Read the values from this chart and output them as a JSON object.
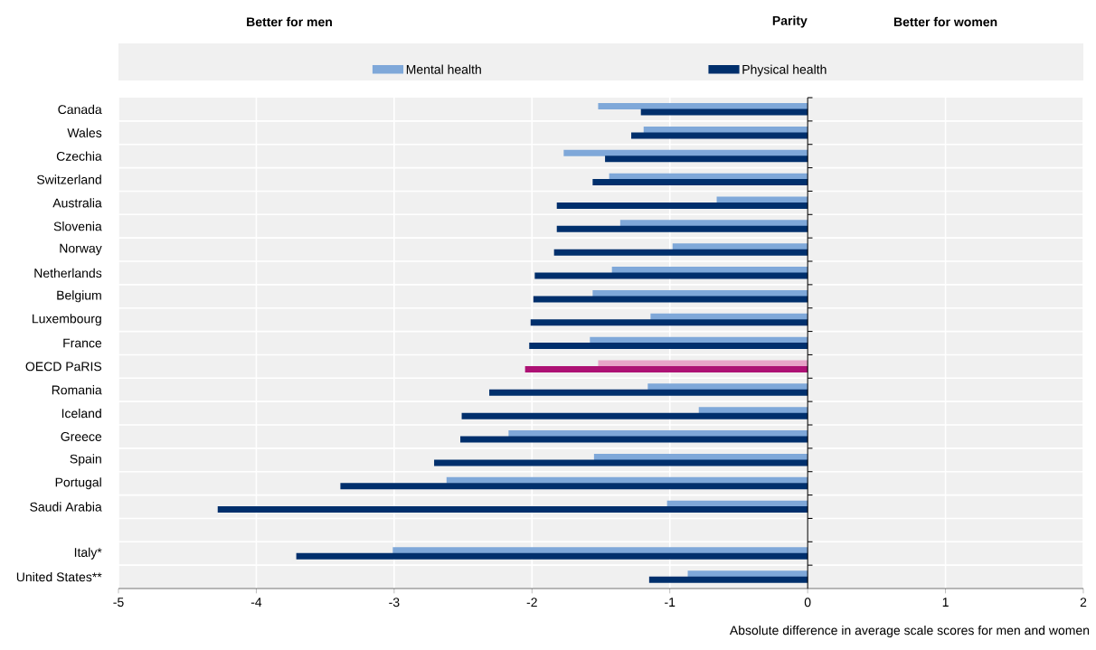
{
  "chart_data": {
    "type": "bar",
    "orientation": "horizontal",
    "xlabel": "Absolute difference in average scale scores for men and women",
    "annotations": [
      "Better for men",
      "Parity",
      "Better for women"
    ],
    "categories": [
      "Canada",
      "Wales",
      "Czechia",
      "Switzerland",
      "Australia",
      "Slovenia",
      "Norway",
      "Netherlands",
      "Belgium",
      "Luxembourg",
      "France",
      "OECD PaRIS",
      "Romania",
      "Iceland",
      "Greece",
      "Spain",
      "Portugal",
      "Saudi Arabia",
      null,
      "Italy*",
      "United States**"
    ],
    "series": [
      {
        "name": "Mental health",
        "color": "#7fa8d9",
        "colors": [
          "#7fa8d9",
          "#7fa8d9",
          "#7fa8d9",
          "#7fa8d9",
          "#7fa8d9",
          "#7fa8d9",
          "#7fa8d9",
          "#7fa8d9",
          "#7fa8d9",
          "#7fa8d9",
          "#7fa8d9",
          "#e8a3c8",
          "#7fa8d9",
          "#7fa8d9",
          "#7fa8d9",
          "#7fa8d9",
          "#7fa8d9",
          "#7fa8d9",
          "#7fa8d9",
          "#7fa8d9",
          "#7fa8d9"
        ],
        "values": [
          -1.52,
          -1.19,
          -1.77,
          -1.44,
          -0.66,
          -1.36,
          -0.98,
          -1.42,
          -1.56,
          -1.14,
          -1.58,
          -1.52,
          -1.16,
          -0.79,
          -2.17,
          -1.55,
          -2.62,
          -1.02,
          null,
          -3.01,
          -0.87
        ]
      },
      {
        "name": "Physical health",
        "color": "#002f6c",
        "colors": [
          "#002f6c",
          "#002f6c",
          "#002f6c",
          "#002f6c",
          "#002f6c",
          "#002f6c",
          "#002f6c",
          "#002f6c",
          "#002f6c",
          "#002f6c",
          "#002f6c",
          "#ad1174",
          "#002f6c",
          "#002f6c",
          "#002f6c",
          "#002f6c",
          "#002f6c",
          "#002f6c",
          "#002f6c",
          "#002f6c",
          "#002f6c"
        ],
        "values": [
          -1.21,
          -1.28,
          -1.47,
          -1.56,
          -1.82,
          -1.82,
          -1.84,
          -1.98,
          -1.99,
          -2.01,
          -2.02,
          -2.05,
          -2.31,
          -2.51,
          -2.52,
          -2.71,
          -3.39,
          -4.28,
          null,
          -3.71,
          -1.15
        ]
      }
    ],
    "xlim": [
      -5,
      2
    ],
    "xticks": [
      -5,
      -4,
      -3,
      -2,
      -1,
      0,
      1,
      2
    ],
    "grid": true,
    "legend": "top"
  }
}
